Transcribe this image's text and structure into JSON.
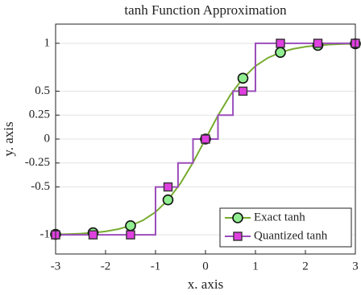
{
  "chart_data": {
    "type": "line",
    "title": "tanh Function Approximation",
    "xlabel": "x. axis",
    "ylabel": "y. axis",
    "xlim": [
      -3,
      3
    ],
    "ylim": [
      -1.2,
      1.2
    ],
    "xticks": [
      -3,
      -2,
      -1,
      0,
      1,
      2,
      3
    ],
    "yticks": [
      -1,
      -0.5,
      -0.25,
      0,
      0.25,
      0.5,
      1
    ],
    "grid": true,
    "legend": "lower right",
    "series": [
      {
        "name": "Exact tanh",
        "color": "#77ac30",
        "marker": "circle",
        "marker_color": "#90ee90",
        "x": [
          -3,
          -2.25,
          -1.5,
          -0.75,
          0,
          0.75,
          1.5,
          2.25,
          3
        ],
        "values": [
          -0.995,
          -0.978,
          -0.905,
          -0.635,
          0,
          0.635,
          0.905,
          0.978,
          0.995
        ],
        "line_x": [
          -3,
          -2.75,
          -2.5,
          -2.25,
          -2,
          -1.75,
          -1.5,
          -1.25,
          -1,
          -0.75,
          -0.5,
          -0.25,
          0,
          0.25,
          0.5,
          0.75,
          1,
          1.25,
          1.5,
          1.75,
          2,
          2.25,
          2.5,
          2.75,
          3
        ],
        "line_values": [
          -0.995,
          -0.992,
          -0.987,
          -0.978,
          -0.964,
          -0.941,
          -0.905,
          -0.848,
          -0.762,
          -0.635,
          -0.462,
          -0.245,
          0,
          0.245,
          0.462,
          0.635,
          0.762,
          0.848,
          0.905,
          0.941,
          0.964,
          0.978,
          0.987,
          0.992,
          0.995
        ]
      },
      {
        "name": "Quantized tanh",
        "color": "#9b4dbb",
        "marker": "square",
        "marker_color": "#e040e0",
        "stairs": true,
        "x": [
          -3,
          -2.25,
          -1.5,
          -0.75,
          0,
          0.75,
          1.5,
          2.25,
          3
        ],
        "values": [
          -1,
          -1,
          -1,
          -0.5,
          0,
          0.5,
          1,
          1,
          1
        ],
        "line_x": [
          -3,
          -1,
          -0.55,
          -0.25,
          0.25,
          0.55,
          1,
          3
        ],
        "line_values": [
          -1,
          -0.5,
          -0.25,
          0,
          0.25,
          0.5,
          1,
          1
        ]
      }
    ]
  }
}
